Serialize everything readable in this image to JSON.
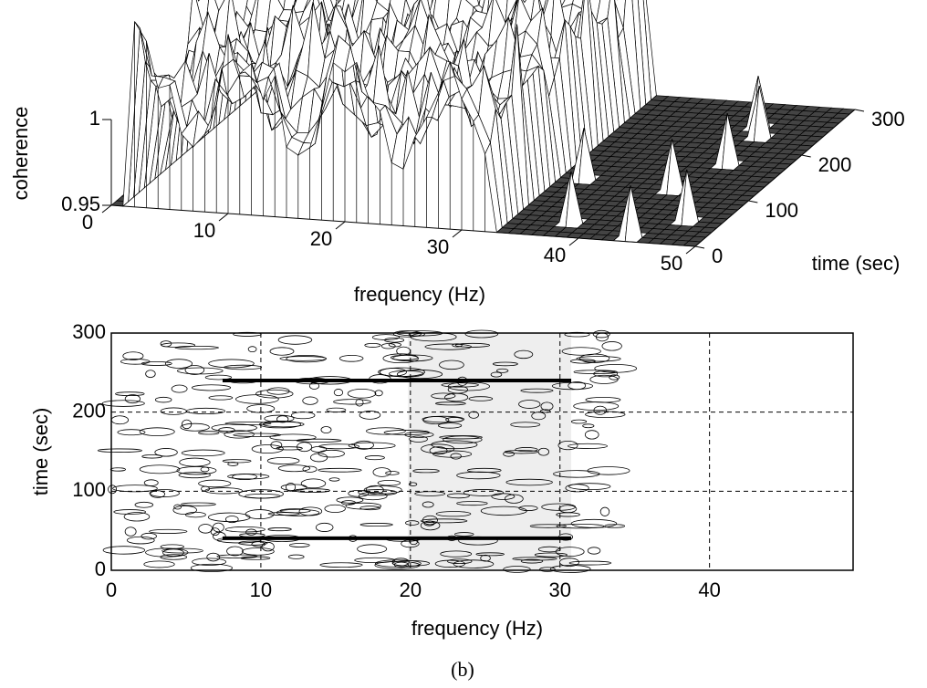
{
  "chart_data": [
    {
      "type": "surface",
      "xlabel": "frequency (Hz)",
      "ylabel": "time (sec)",
      "zlabel": "coherence",
      "xlim": [
        0,
        50
      ],
      "ylim": [
        0,
        300
      ],
      "zlim": [
        0.95,
        1
      ],
      "xticks": [
        0,
        10,
        20,
        30,
        40,
        50
      ],
      "yticks": [
        0,
        100,
        200,
        300
      ],
      "zticks": [
        0.95,
        1
      ]
    },
    {
      "type": "contour",
      "xlabel": "frequency (Hz)",
      "ylabel": "time (sec)",
      "xlim": [
        0,
        49.6
      ],
      "ylim": [
        0,
        300
      ],
      "xticks": [
        0,
        10,
        20,
        30,
        40
      ],
      "yticks": [
        0,
        100,
        200,
        300
      ],
      "grid": true
    }
  ],
  "caption": "(b)"
}
